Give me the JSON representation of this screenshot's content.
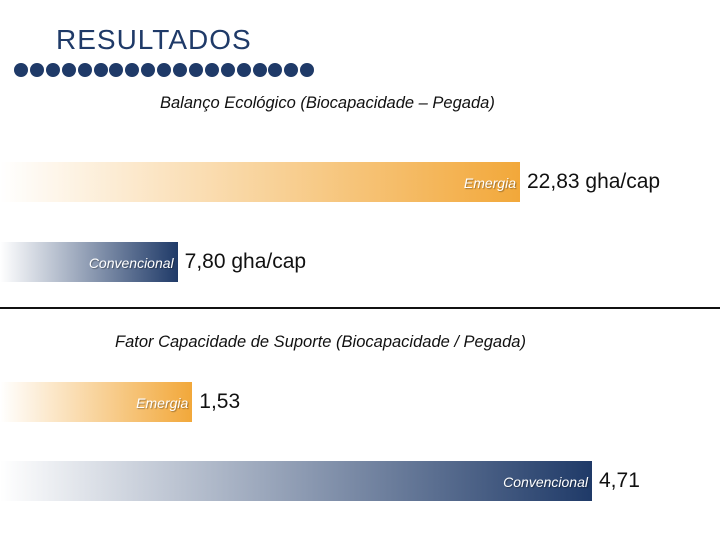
{
  "slide": {
    "title": "RESULTADOS",
    "accent_color": "#1f3a68"
  },
  "chart_data": [
    {
      "type": "bar",
      "orientation": "horizontal",
      "title": "Balanço Ecológico (Biocapacidade – Pegada)",
      "categories": [
        "Emergia",
        "Convencional"
      ],
      "values": [
        22.83,
        7.8
      ],
      "value_labels": [
        "22,83 gha/cap",
        "7,80 gha/cap"
      ],
      "colors": [
        "#f2a83a",
        "#1f3a68"
      ],
      "unit": "gha/cap"
    },
    {
      "type": "bar",
      "orientation": "horizontal",
      "title": "Fator Capacidade de Suporte (Biocapacidade / Pegada)",
      "categories": [
        "Emergia",
        "Convencional"
      ],
      "values": [
        1.53,
        4.71
      ],
      "value_labels": [
        "1,53",
        "4,71"
      ],
      "colors": [
        "#f2a83a",
        "#1f3a68"
      ],
      "unit": ""
    }
  ]
}
